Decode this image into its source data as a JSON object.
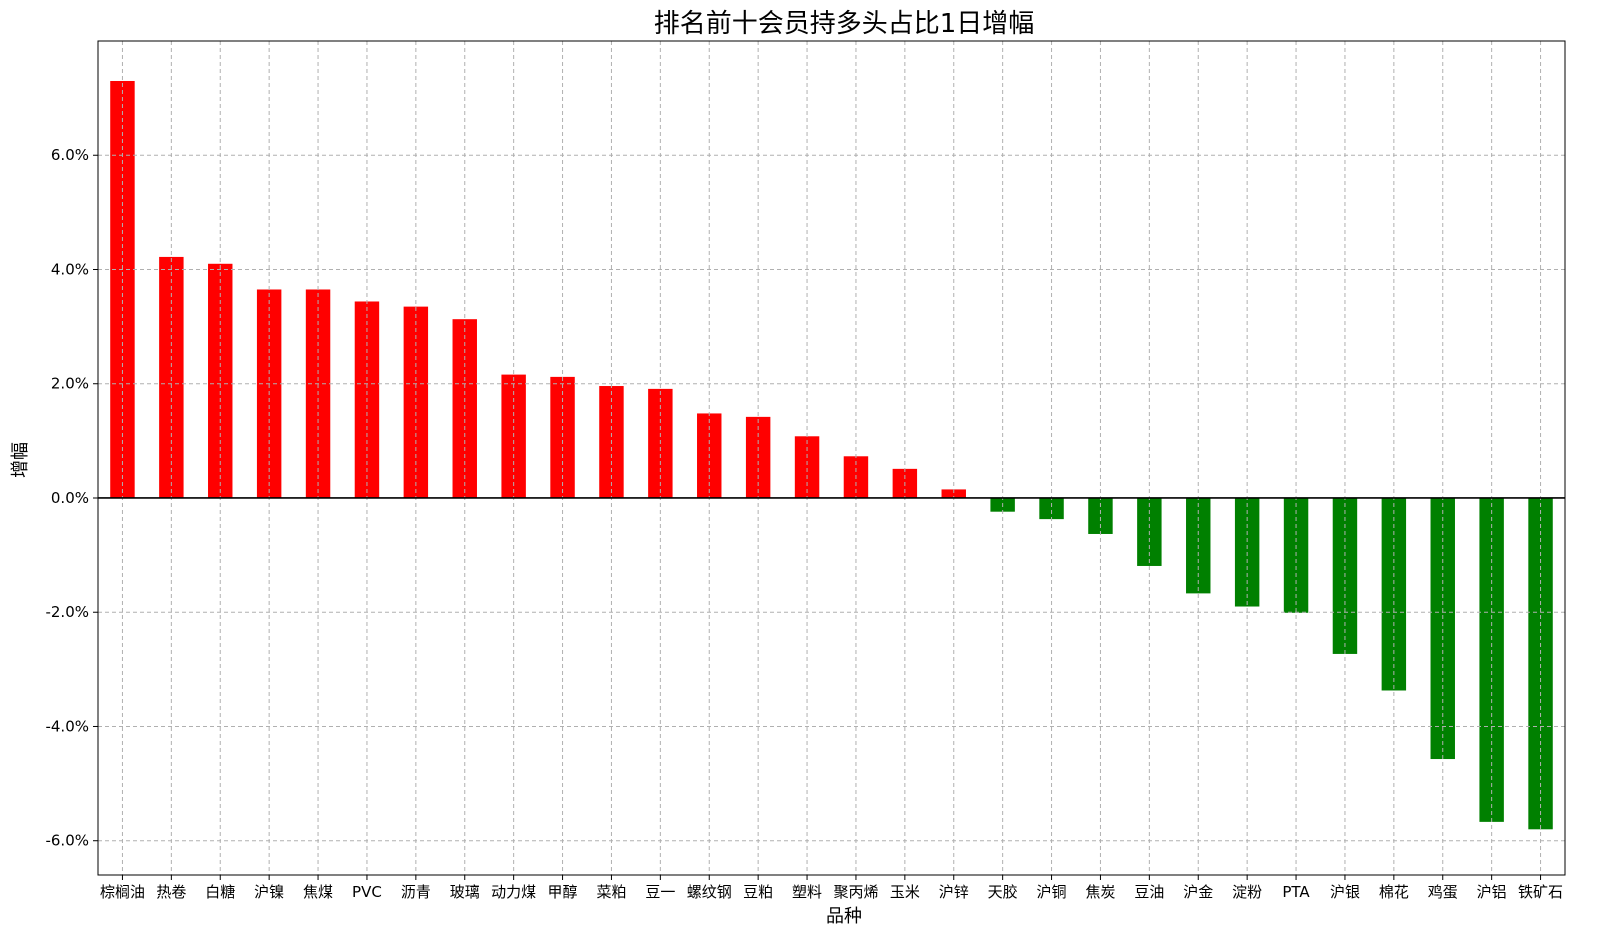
{
  "chart_data": {
    "type": "bar",
    "title": "排名前十会员持多头占比1日增幅",
    "xlabel": "品种",
    "ylabel": "增幅",
    "categories": [
      "棕榈油",
      "热卷",
      "白糖",
      "沪镍",
      "焦煤",
      "PVC",
      "沥青",
      "玻璃",
      "动力煤",
      "甲醇",
      "菜粕",
      "豆一",
      "螺纹钢",
      "豆粕",
      "塑料",
      "聚丙烯",
      "玉米",
      "沪锌",
      "天胶",
      "沪铜",
      "焦炭",
      "豆油",
      "沪金",
      "淀粉",
      "PTA",
      "沪银",
      "棉花",
      "鸡蛋",
      "沪铝",
      "铁矿石"
    ],
    "values": [
      7.3,
      4.22,
      4.1,
      3.65,
      3.65,
      3.44,
      3.35,
      3.13,
      2.16,
      2.12,
      1.96,
      1.91,
      1.48,
      1.42,
      1.08,
      0.73,
      0.51,
      0.15,
      -0.24,
      -0.37,
      -0.63,
      -1.19,
      -1.67,
      -1.9,
      -2.01,
      -2.73,
      -3.37,
      -4.57,
      -5.67,
      -5.8
    ],
    "ylim": [
      -6.6,
      8.0
    ],
    "yticks": [
      -6,
      -4,
      -2,
      0,
      2,
      4,
      6
    ],
    "ytick_labels": [
      "-6.0%",
      "-4.0%",
      "-2.0%",
      "0.0%",
      "2.0%",
      "4.0%",
      "6.0%"
    ],
    "positive_color": "#ff0000",
    "negative_color": "#008000",
    "grid": true
  }
}
